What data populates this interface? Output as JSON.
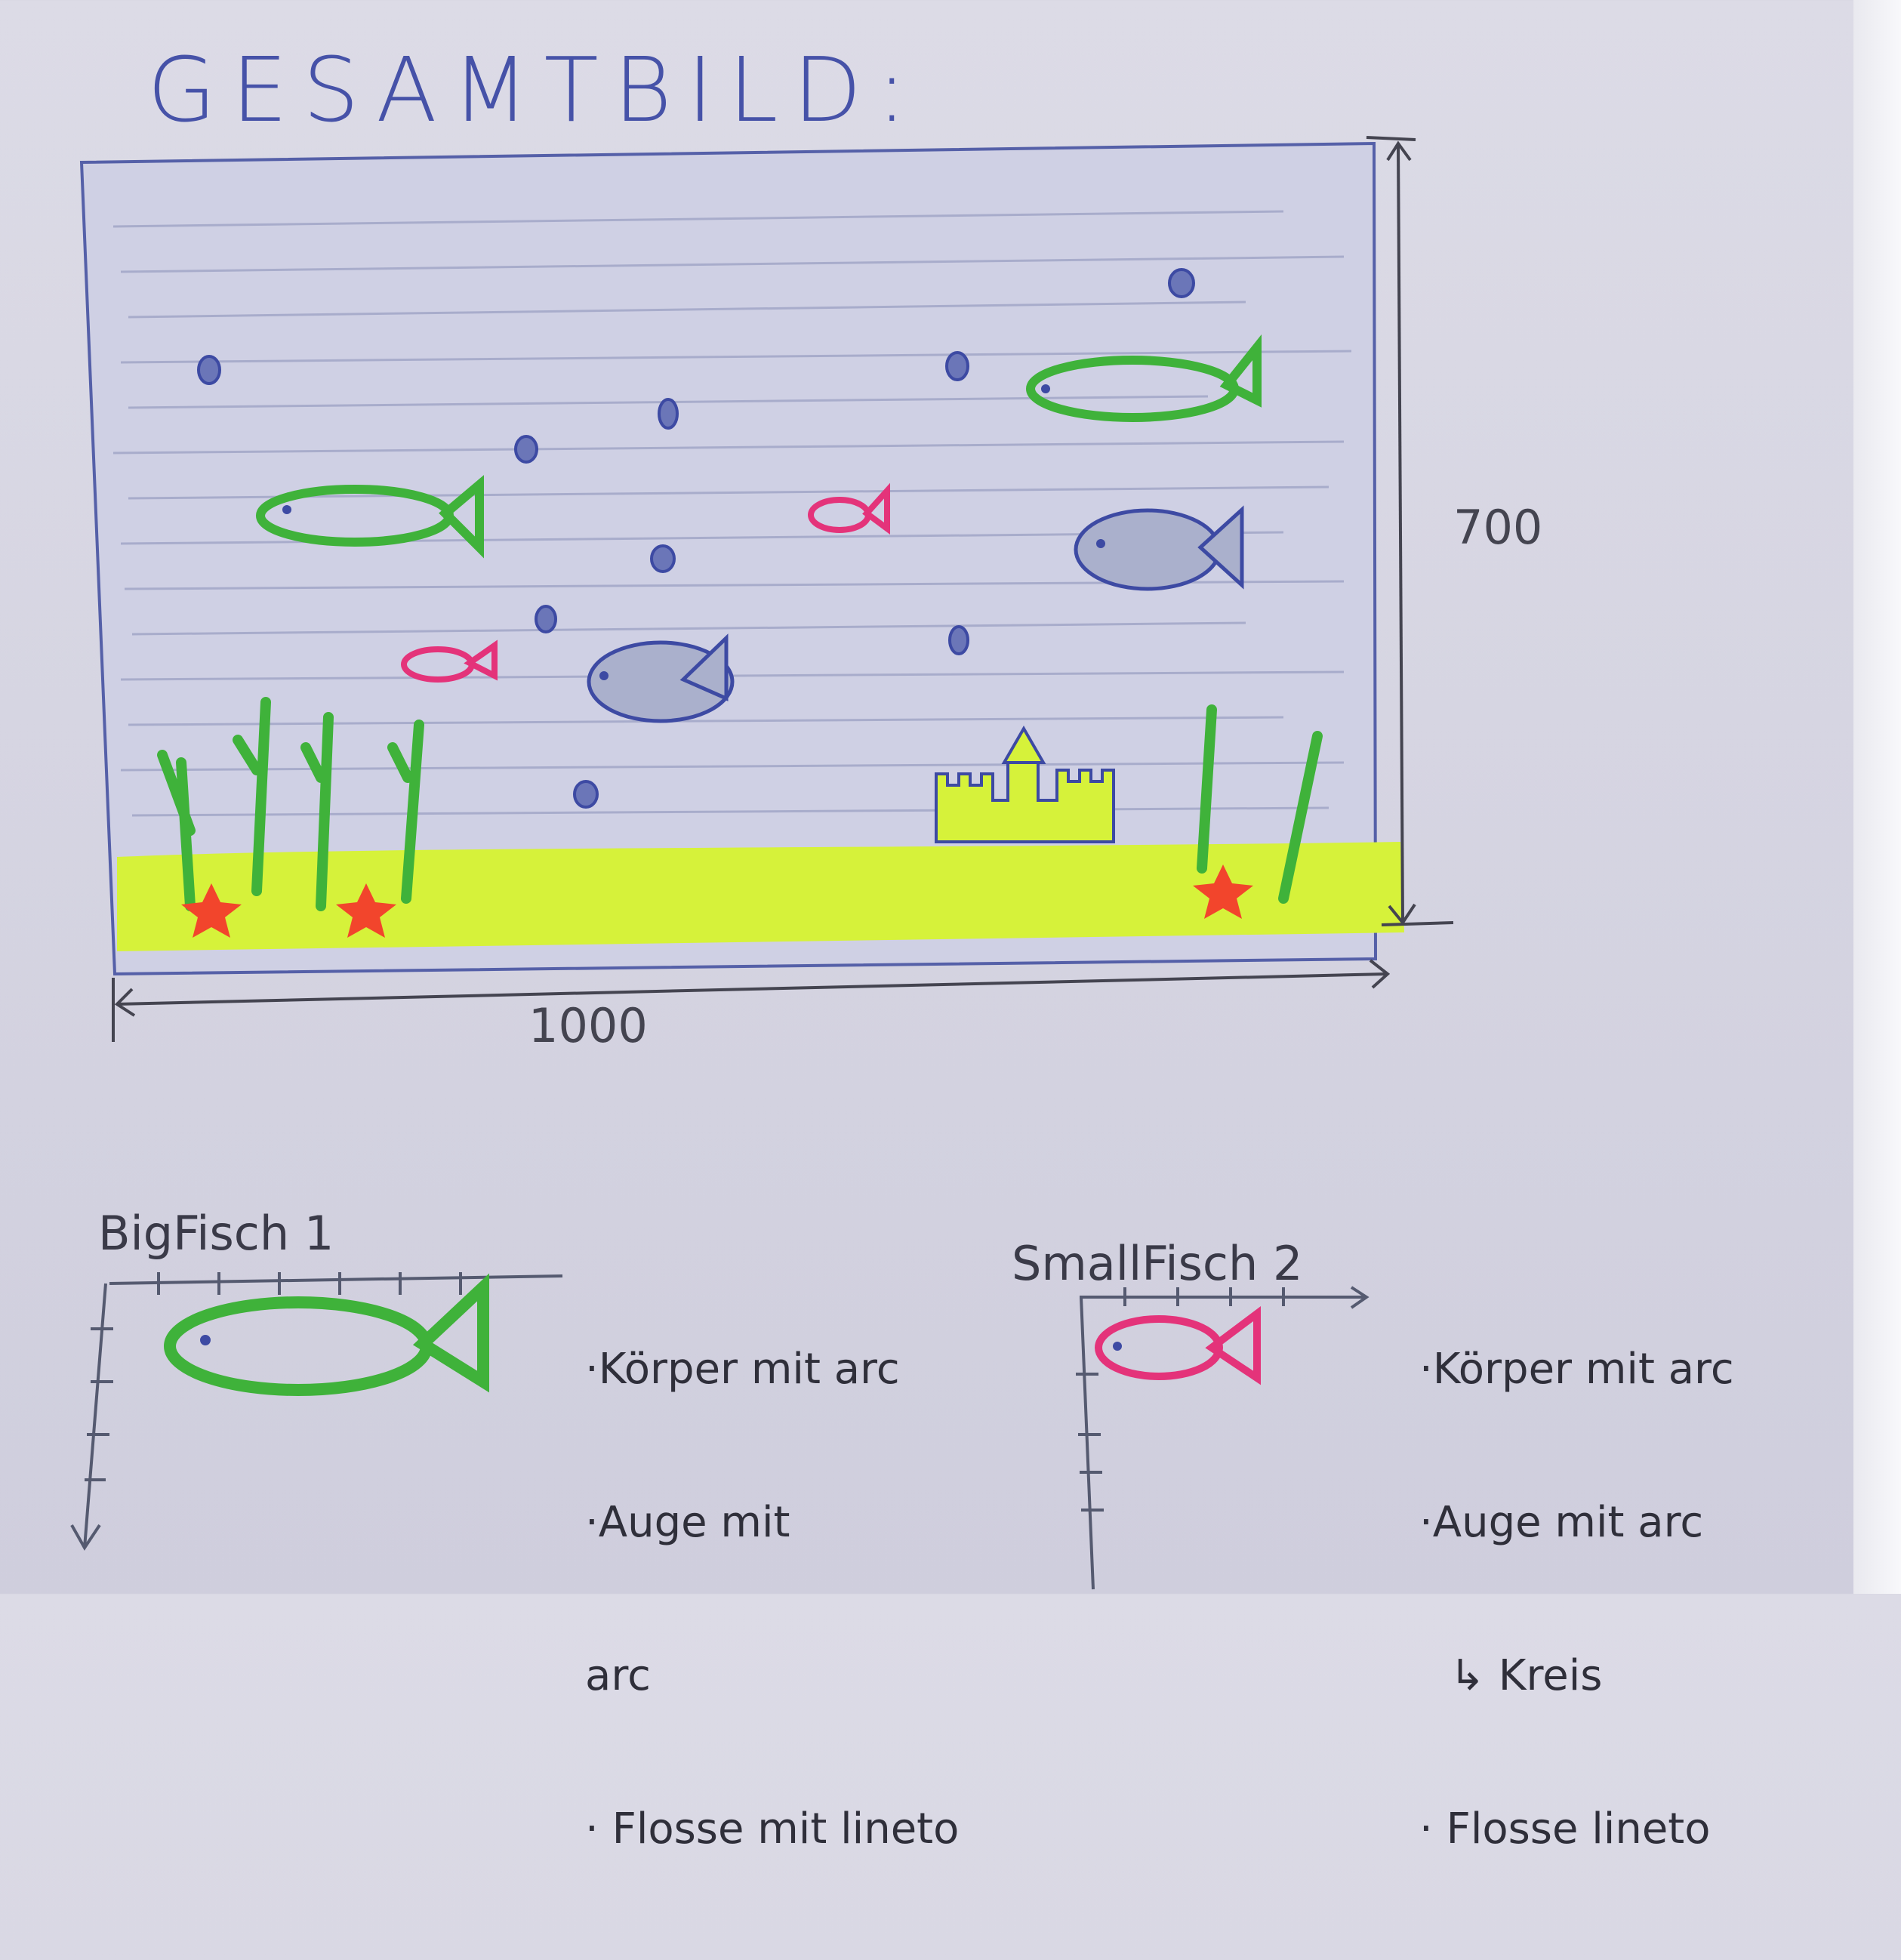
{
  "title": "GESAMTBILD:",
  "dimensions": {
    "width": "1000",
    "height": "700"
  },
  "big_fish": {
    "label": "BigFisch 1",
    "notes": [
      "·Körper mit arc",
      "·Auge mit",
      "arc",
      "· Flosse mit lineto"
    ]
  },
  "small_fish": {
    "label": "SmallFisch 2",
    "notes": [
      "·Körper mit arc",
      "·Auge mit arc",
      "↳ Kreis",
      "· Flosse lineto"
    ]
  },
  "colors": {
    "ink": "#3d4aa3",
    "sand": "#d6f23a",
    "plant": "#3fb23a",
    "pink": "#e4337a",
    "starfish": "#f2452c",
    "grey_fish": "#6e7ab0"
  }
}
